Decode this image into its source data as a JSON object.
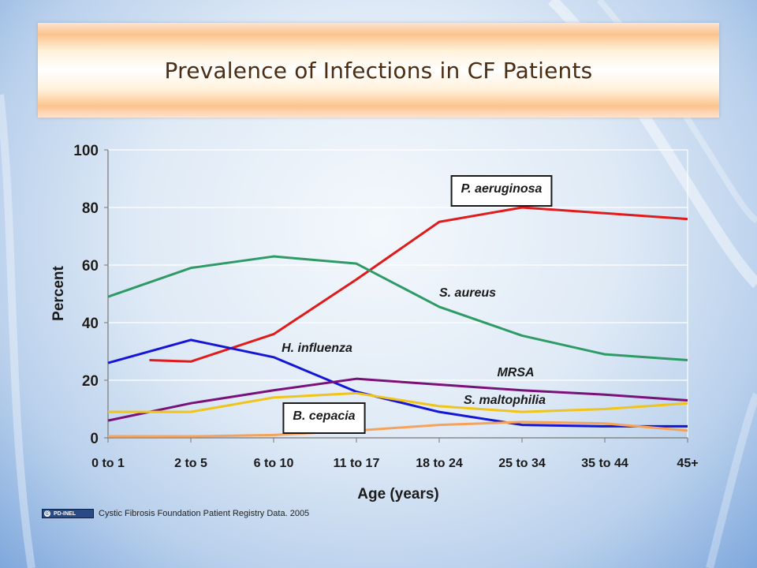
{
  "slide": {
    "title": "Prevalence of Infections in CF Patients",
    "source_logo_text": "PD-INEL",
    "source_text": "Cystic Fibrosis Foundation Patient Registry Data. 2005"
  },
  "chart_data": {
    "type": "line",
    "xlabel": "Age (years)",
    "ylabel": "Percent",
    "ylim": [
      0,
      100
    ],
    "yticks": [
      0,
      20,
      40,
      60,
      80,
      100
    ],
    "grid": true,
    "categories": [
      "0 to 1",
      "2 to 5",
      "6 to 10",
      "11 to 17",
      "18 to 24",
      "25 to 34",
      "35 to 44",
      "45+"
    ],
    "series": [
      {
        "name": "P. aeruginosa",
        "color": "#e01b1b",
        "boxed": true,
        "values": [
          27,
          26.5,
          36,
          55,
          75,
          80,
          78,
          76
        ],
        "x": [
          0.5,
          1,
          2,
          3,
          4,
          5,
          6,
          7
        ]
      },
      {
        "name": "S. aureus",
        "color": "#2e9a66",
        "boxed": false,
        "values": [
          49,
          59,
          63,
          60.5,
          45.5,
          35.5,
          29,
          27
        ],
        "x": [
          0,
          1,
          2,
          3,
          4,
          5,
          6,
          7
        ]
      },
      {
        "name": "H. influenza",
        "color": "#1515d6",
        "boxed": false,
        "values": [
          26,
          34,
          28,
          16,
          9,
          4.5,
          4,
          4
        ],
        "x": [
          0,
          1,
          2,
          3,
          4,
          5,
          6,
          7
        ]
      },
      {
        "name": "MRSA",
        "color": "#7a107a",
        "boxed": false,
        "values": [
          6,
          12,
          16.5,
          20.5,
          18.5,
          16.5,
          15,
          13
        ],
        "x": [
          0,
          1,
          2,
          3,
          4,
          5,
          6,
          7
        ]
      },
      {
        "name": "S. maltophilia",
        "color": "#f0c419",
        "boxed": false,
        "values": [
          9,
          9,
          14,
          15.5,
          11,
          9,
          10,
          12
        ],
        "x": [
          0,
          1,
          2,
          3,
          4,
          5,
          6,
          7
        ]
      },
      {
        "name": "B. cepacia",
        "color": "#f7a25b",
        "boxed": true,
        "values": [
          0.5,
          0.5,
          1,
          2.5,
          4.5,
          5.5,
          5,
          2.5
        ],
        "x": [
          0,
          1,
          2,
          3,
          4,
          5,
          6,
          7
        ]
      }
    ]
  }
}
